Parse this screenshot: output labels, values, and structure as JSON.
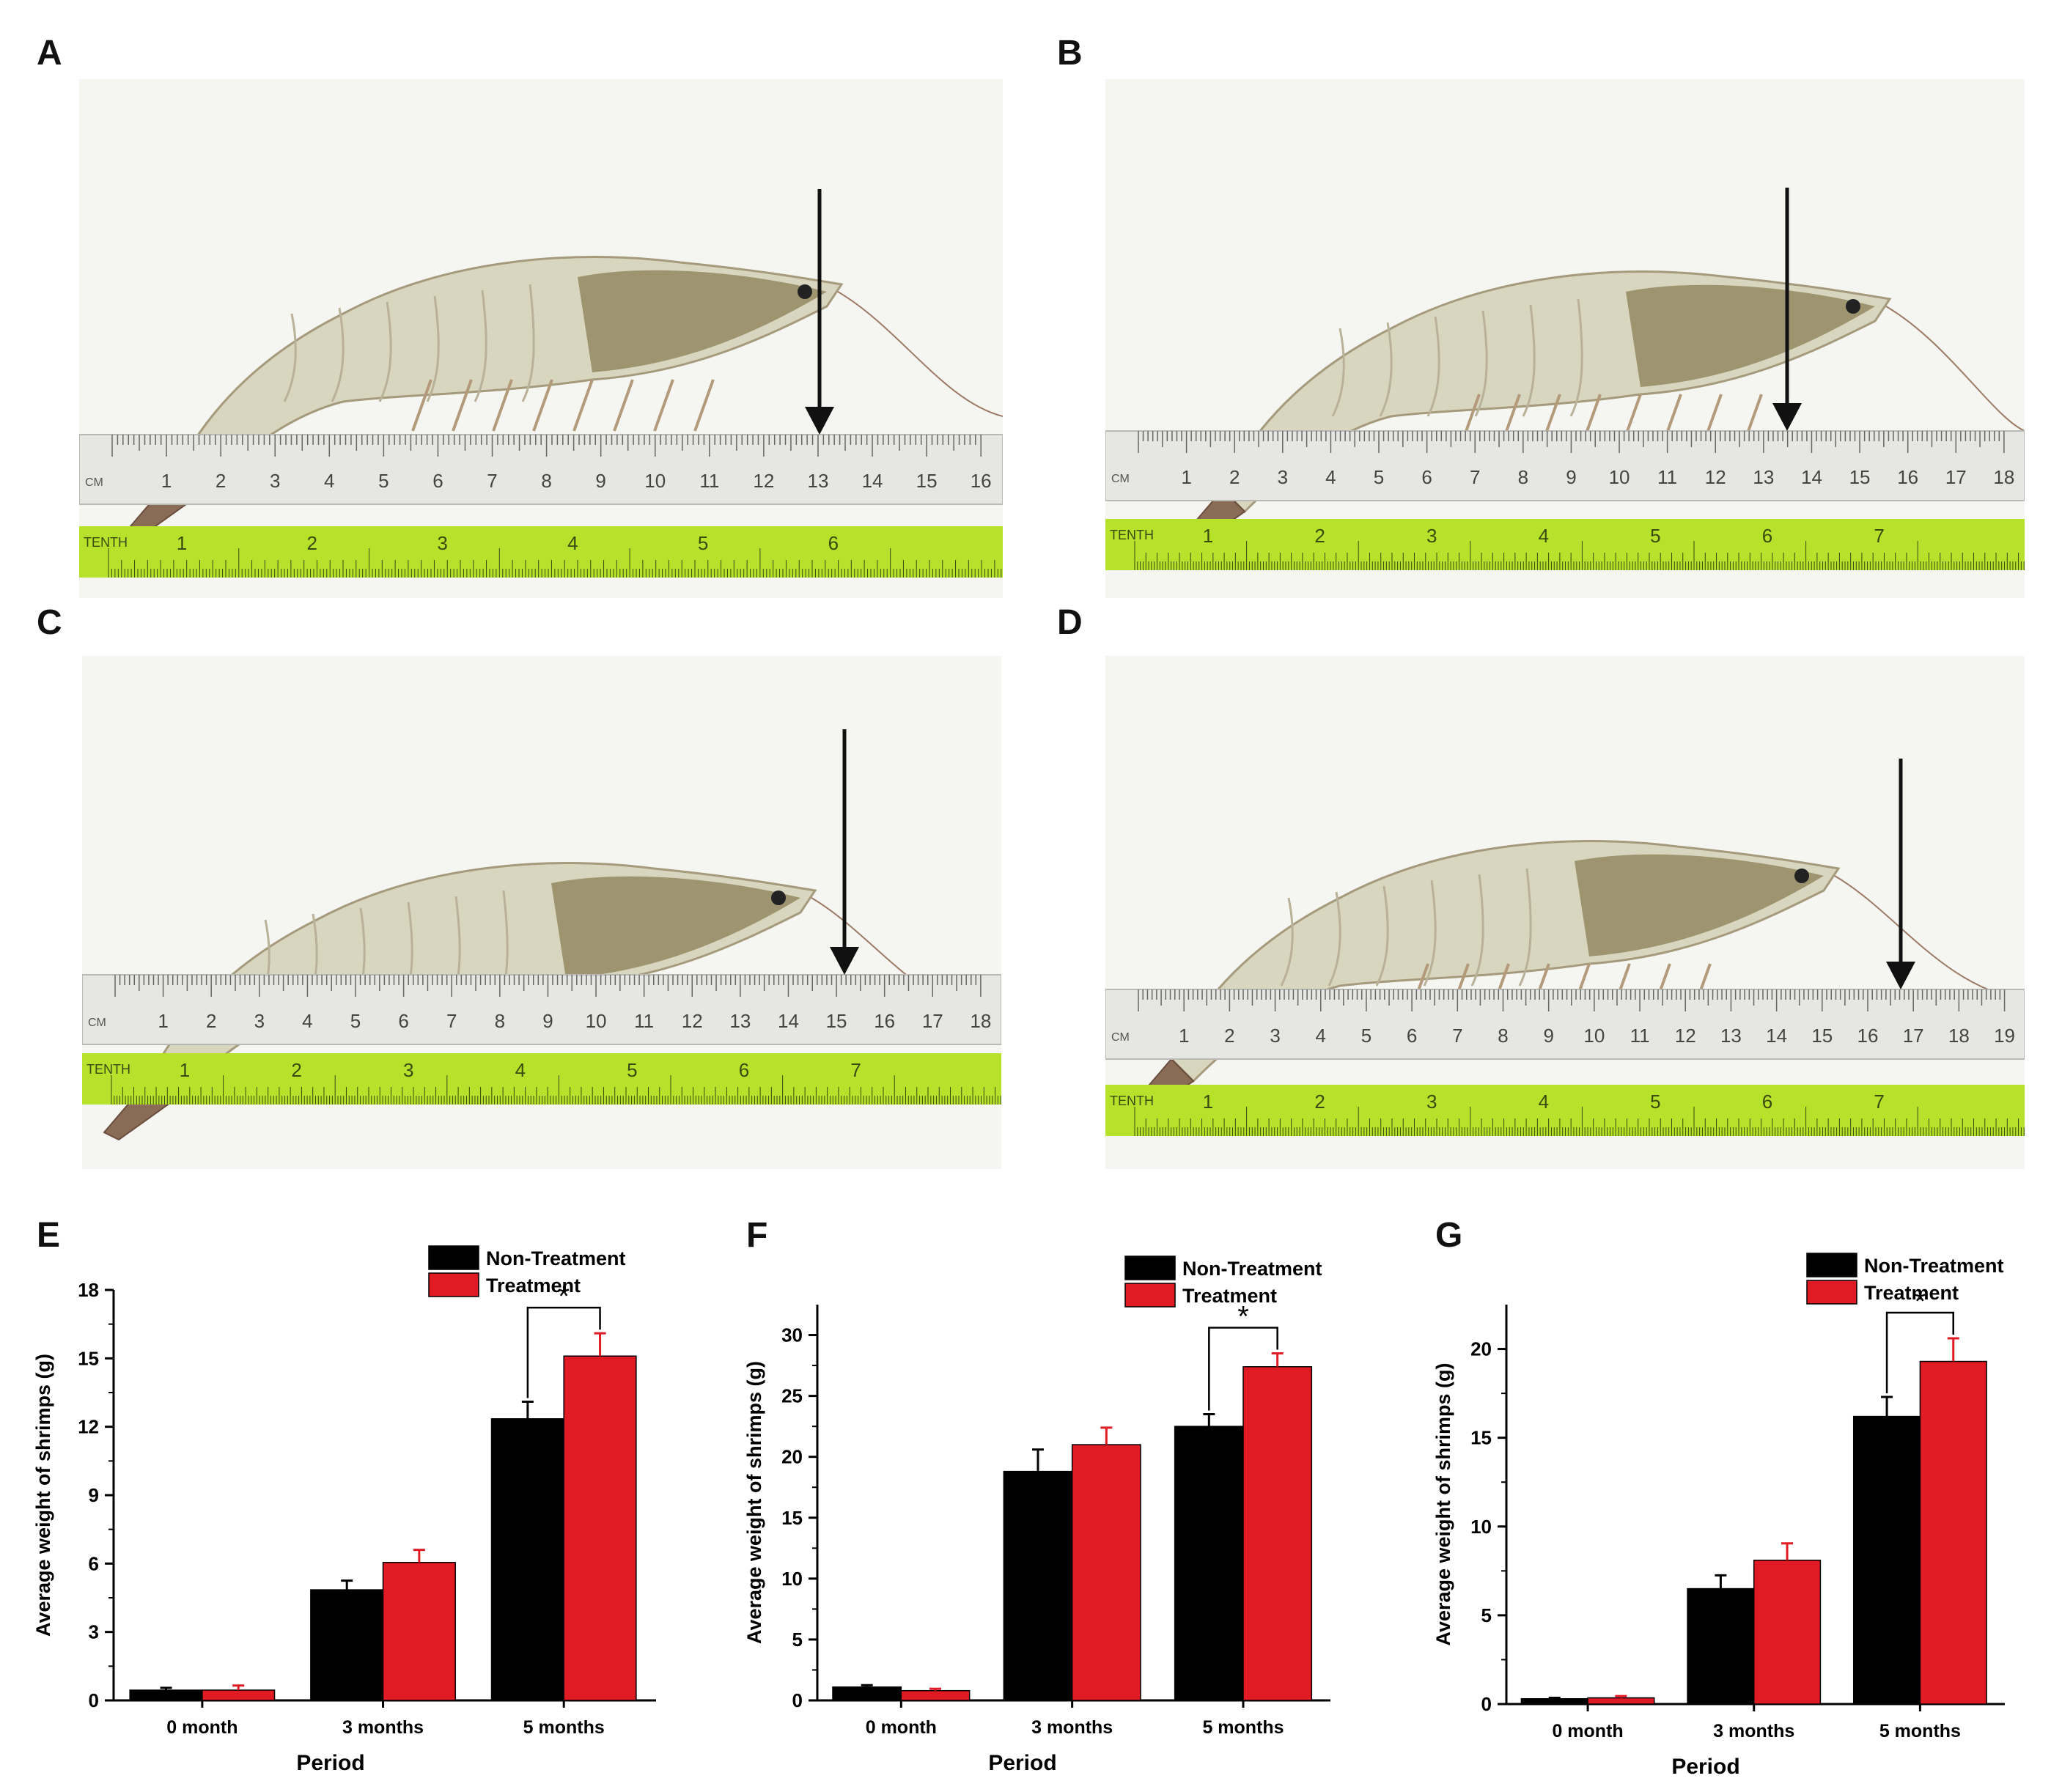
{
  "panels": {
    "photos": [
      {
        "letter": "A",
        "ruler_unit": "CM",
        "tape_label": "TENTH",
        "cm_ticks": [
          "1",
          "2",
          "3",
          "4",
          "5",
          "6",
          "7",
          "8",
          "9",
          "10",
          "11",
          "12",
          "13",
          "14",
          "15",
          "16"
        ],
        "tenth_ticks": [
          "1",
          "2",
          "3",
          "4",
          "5",
          "6"
        ]
      },
      {
        "letter": "B",
        "ruler_unit": "CM",
        "tape_label": "TENTH",
        "cm_ticks": [
          "1",
          "2",
          "3",
          "4",
          "5",
          "6",
          "7",
          "8",
          "9",
          "10",
          "11",
          "12",
          "13",
          "14",
          "15",
          "16",
          "17",
          "18"
        ],
        "tenth_ticks": [
          "1",
          "2",
          "3",
          "4",
          "5",
          "6",
          "7"
        ]
      },
      {
        "letter": "C",
        "ruler_unit": "CM",
        "tape_label": "TENTH",
        "cm_ticks": [
          "1",
          "2",
          "3",
          "4",
          "5",
          "6",
          "7",
          "8",
          "9",
          "10",
          "11",
          "12",
          "13",
          "14",
          "15",
          "16",
          "17",
          "18"
        ],
        "tenth_ticks": [
          "1",
          "2",
          "3",
          "4",
          "5",
          "6",
          "7"
        ]
      },
      {
        "letter": "D",
        "ruler_unit": "CM",
        "tape_label": "TENTH",
        "cm_ticks": [
          "1",
          "2",
          "3",
          "4",
          "5",
          "6",
          "7",
          "8",
          "9",
          "10",
          "11",
          "12",
          "13",
          "14",
          "15",
          "16",
          "17",
          "18",
          "19"
        ],
        "tenth_ticks": [
          "1",
          "2",
          "3",
          "4",
          "5",
          "6",
          "7"
        ]
      }
    ]
  },
  "colors": {
    "non_treatment": "#000000",
    "treatment": "#e01b24",
    "error_black": "#000000",
    "error_red": "#e01b24"
  },
  "chart_data": [
    {
      "panel": "E",
      "type": "bar",
      "categories": [
        "0 month",
        "3 months",
        "5 months"
      ],
      "series": [
        {
          "name": "Non-Treatment",
          "values": [
            0.45,
            4.85,
            12.35
          ],
          "errors": [
            0.1,
            0.4,
            0.75
          ]
        },
        {
          "name": "Treatment",
          "values": [
            0.45,
            6.05,
            15.1
          ],
          "errors": [
            0.2,
            0.55,
            1.0
          ]
        }
      ],
      "significance": {
        "category_index": 2,
        "label": "*"
      },
      "xlabel": "Period",
      "ylabel": "Average weight of shrimps (g)",
      "ylim": [
        0,
        18
      ],
      "yticks": [
        0,
        3,
        6,
        9,
        12,
        15,
        18
      ]
    },
    {
      "panel": "F",
      "type": "bar",
      "categories": [
        "0 month",
        "3 months",
        "5 months"
      ],
      "series": [
        {
          "name": "Non-Treatment",
          "values": [
            1.1,
            18.8,
            22.5
          ],
          "errors": [
            0.15,
            1.8,
            1.0
          ]
        },
        {
          "name": "Treatment",
          "values": [
            0.8,
            21.0,
            27.4
          ],
          "errors": [
            0.15,
            1.4,
            1.1
          ]
        }
      ],
      "significance": {
        "category_index": 2,
        "label": "*"
      },
      "xlabel": "Period",
      "ylabel": "Average weight of shrimps (g)",
      "ylim": [
        0,
        32.5
      ],
      "yticks": [
        0,
        5,
        10,
        15,
        20,
        25,
        30
      ]
    },
    {
      "panel": "G",
      "type": "bar",
      "categories": [
        "0 month",
        "3 months",
        "5 months"
      ],
      "series": [
        {
          "name": "Non-Treatment",
          "values": [
            0.3,
            6.5,
            16.2
          ],
          "errors": [
            0.05,
            0.75,
            1.1
          ]
        },
        {
          "name": "Treatment",
          "values": [
            0.35,
            8.1,
            19.3
          ],
          "errors": [
            0.1,
            0.95,
            1.3
          ]
        }
      ],
      "significance": {
        "category_index": 2,
        "label": "*"
      },
      "xlabel": "Period",
      "ylabel": "Average weight of shrimps (g)",
      "ylim": [
        0,
        22.5
      ],
      "yticks": [
        0,
        5,
        10,
        15,
        20
      ]
    }
  ]
}
